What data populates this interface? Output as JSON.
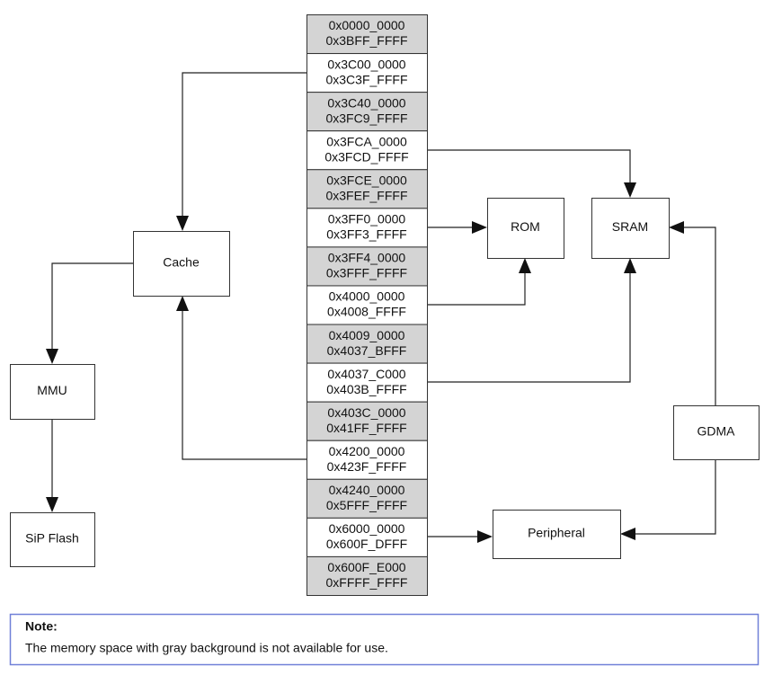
{
  "memory_map": [
    {
      "start": "0x0000_0000",
      "end": "0x3BFF_FFFF",
      "gray": true
    },
    {
      "start": "0x3C00_0000",
      "end": "0x3C3F_FFFF",
      "gray": false
    },
    {
      "start": "0x3C40_0000",
      "end": "0x3FC9_FFFF",
      "gray": true
    },
    {
      "start": "0x3FCA_0000",
      "end": "0x3FCD_FFFF",
      "gray": false
    },
    {
      "start": "0x3FCE_0000",
      "end": "0x3FEF_FFFF",
      "gray": true
    },
    {
      "start": "0x3FF0_0000",
      "end": "0x3FF3_FFFF",
      "gray": false
    },
    {
      "start": "0x3FF4_0000",
      "end": "0x3FFF_FFFF",
      "gray": true
    },
    {
      "start": "0x4000_0000",
      "end": "0x4008_FFFF",
      "gray": false
    },
    {
      "start": "0x4009_0000",
      "end": "0x4037_BFFF",
      "gray": true
    },
    {
      "start": "0x4037_C000",
      "end": "0x403B_FFFF",
      "gray": false
    },
    {
      "start": "0x403C_0000",
      "end": "0x41FF_FFFF",
      "gray": true
    },
    {
      "start": "0x4200_0000",
      "end": "0x423F_FFFF",
      "gray": false
    },
    {
      "start": "0x4240_0000",
      "end": "0x5FFF_FFFF",
      "gray": true
    },
    {
      "start": "0x6000_0000",
      "end": "0x600F_DFFF",
      "gray": false
    },
    {
      "start": "0x600F_E000",
      "end": "0xFFFF_FFFF",
      "gray": true
    }
  ],
  "nodes": [
    {
      "label": "Cache"
    },
    {
      "label": "MMU"
    },
    {
      "label": "SiP Flash"
    },
    {
      "label": "ROM"
    },
    {
      "label": "SRAM"
    },
    {
      "label": "GDMA"
    },
    {
      "label": "Peripheral"
    }
  ],
  "note": {
    "title": "Note:",
    "text": "The memory space with gray background is not available for use."
  }
}
